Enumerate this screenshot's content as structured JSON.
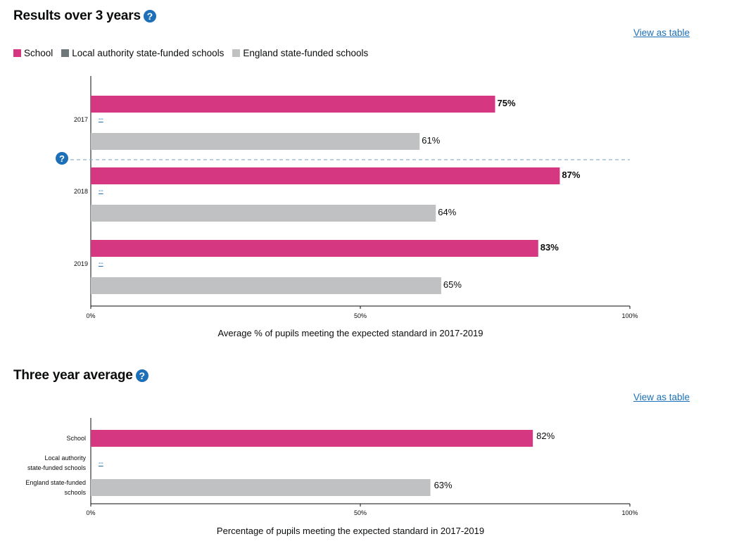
{
  "sections": [
    {
      "heading": "Results over 3 years",
      "view_table_label": "View as table",
      "legend": [
        {
          "label": "School",
          "color": "#d53880"
        },
        {
          "label": "Local authority state-funded schools",
          "color": "#6f777b"
        },
        {
          "label": "England state-funded schools",
          "color": "#bfc1c3"
        }
      ]
    },
    {
      "heading": "Three year average",
      "view_table_label": "View as table"
    }
  ],
  "chart_data": [
    {
      "type": "bar",
      "orientation": "horizontal",
      "categories": [
        "2017",
        "2018",
        "2019"
      ],
      "series": [
        {
          "name": "School",
          "color": "#d53880",
          "values": [
            75,
            87,
            83
          ],
          "labels": [
            "75%",
            "87%",
            "83%"
          ]
        },
        {
          "name": "Local authority state-funded schools",
          "color": "#6f777b",
          "values": [
            null,
            null,
            null
          ],
          "labels": [
            "--",
            "--",
            "--"
          ]
        },
        {
          "name": "England state-funded schools",
          "color": "#bfc1c3",
          "values": [
            61,
            64,
            65
          ],
          "labels": [
            "61%",
            "64%",
            "65%"
          ]
        }
      ],
      "xlim": [
        0,
        100
      ],
      "xticks": [
        "0%",
        "50%",
        "100%"
      ],
      "xlabel": "Average % of pupils meeting the expected standard in 2017-2019"
    },
    {
      "type": "bar",
      "orientation": "horizontal",
      "categories": [
        [
          "School"
        ],
        [
          "Local authority",
          "state-funded schools"
        ],
        [
          "England state-funded",
          "schools"
        ]
      ],
      "values": [
        82,
        null,
        63
      ],
      "labels": [
        "82%",
        "--",
        "63%"
      ],
      "colors": [
        "#d53880",
        "#6f777b",
        "#bfc1c3"
      ],
      "xlim": [
        0,
        100
      ],
      "xticks": [
        "0%",
        "50%",
        "100%"
      ],
      "xlabel": "Percentage of pupils meeting the expected standard in 2017-2019"
    }
  ]
}
